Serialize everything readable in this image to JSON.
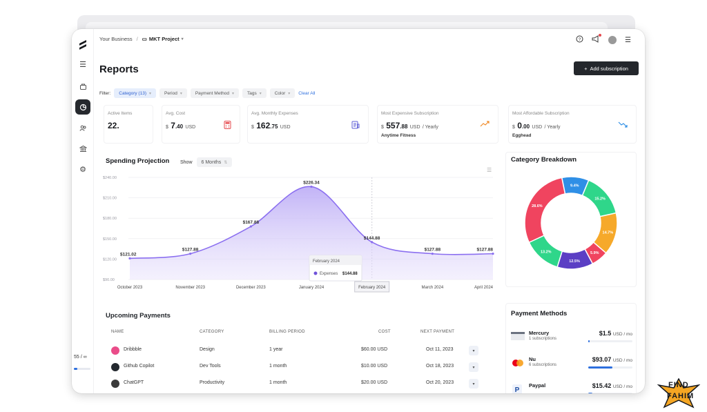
{
  "topbar": {
    "business": "Your Business",
    "separator": "/",
    "project": "MKT Project"
  },
  "sidebar": {
    "usage_text": "55 / ∞",
    "usage_fraction": 0.2
  },
  "page": {
    "title": "Reports",
    "add_button": "Add subscription"
  },
  "filters": {
    "label": "Filter:",
    "chips": [
      {
        "label": "Category (13)",
        "selected": true
      },
      {
        "label": "Period",
        "selected": false
      },
      {
        "label": "Payment Method",
        "selected": false
      },
      {
        "label": "Tags",
        "selected": false
      },
      {
        "label": "Color",
        "selected": false
      }
    ],
    "clear_all": "Clear All"
  },
  "stats": {
    "active_items": {
      "label": "Active Items",
      "value": "22."
    },
    "avg_cost": {
      "label": "Avg. Cost",
      "currency": "$",
      "int": "7",
      "dec": ".40",
      "unit": "USD"
    },
    "avg_monthly": {
      "label": "Avg. Monthly Expenses",
      "currency": "$",
      "int": "162",
      "dec": ".75",
      "unit": "USD"
    },
    "most_expensive": {
      "label": "Most Expensive Subscription",
      "currency": "$",
      "int": "557",
      "dec": ".88",
      "unit": "USD",
      "period": "/ Yearly",
      "name": "Anytime Fitness"
    },
    "most_affordable": {
      "label": "Most Affordable Subscription",
      "currency": "$",
      "int": "0",
      "dec": ".00",
      "unit": "USD",
      "period": "/ Yearly",
      "name": "Egghead"
    }
  },
  "projection": {
    "title": "Spending Projection",
    "show_label": "Show",
    "range": "6 Months",
    "tooltip_title": "February 2024",
    "tooltip_series": "Expenses",
    "tooltip_value": "$144.88"
  },
  "chart_data": {
    "type": "area",
    "x": [
      "October 2023",
      "November 2023",
      "December 2023",
      "January 2024",
      "February 2024",
      "March 2024",
      "April 2024"
    ],
    "y": [
      121.02,
      127.88,
      167.88,
      226.34,
      144.88,
      127.88,
      127.88
    ],
    "data_labels": [
      "$121.02",
      "$127.88",
      "$167.88",
      "$226.34",
      "$144.88",
      "$127.88",
      "$127.88"
    ],
    "y_ticks": [
      "$240.00",
      "$210.00",
      "$180.00",
      "$150.00",
      "$120.00",
      "$90.00"
    ],
    "ylim": [
      90,
      240
    ],
    "highlighted": "February 2024",
    "color": "#8b6ff0"
  },
  "breakdown": {
    "title": "Category Breakdown",
    "type": "pie",
    "slices": [
      {
        "label": "9.4%",
        "value": 9.4,
        "color": "#2f8fe6"
      },
      {
        "label": "15.2%",
        "value": 15.2,
        "color": "#2fd68a"
      },
      {
        "label": "14.7%",
        "value": 14.7,
        "color": "#f6a92a"
      },
      {
        "label": "5.9%",
        "value": 5.9,
        "color": "#f0445f"
      },
      {
        "label": "12.5%",
        "value": 12.5,
        "color": "#5b3fc4"
      },
      {
        "label": "13.2%",
        "value": 13.2,
        "color": "#2fd68a"
      },
      {
        "label": "28.6%",
        "value": 28.6,
        "color": "#f0445f"
      }
    ]
  },
  "payment_methods": {
    "title": "Payment Methods",
    "items": [
      {
        "name": "Mercury",
        "sub": "1 subscriptions",
        "amount": "$1.5",
        "unit": "USD / mo",
        "fraction": 0.03
      },
      {
        "name": "Nu",
        "sub": "6 subscriptions",
        "amount": "$93.07",
        "unit": "USD / mo",
        "fraction": 0.55
      },
      {
        "name": "Paypal",
        "sub": "",
        "amount": "$15.42",
        "unit": "USD / mo",
        "fraction": 0.1
      }
    ]
  },
  "upcoming": {
    "title": "Upcoming Payments",
    "headers": [
      "NAME",
      "CATEGORY",
      "BILLING PERIOD",
      "COST",
      "NEXT PAYMENT"
    ],
    "rows": [
      {
        "name": "Dribbble",
        "category": "Design",
        "period": "1 year",
        "cost": "$60.00 USD",
        "next": "Oct 11, 2023",
        "logo_color": "#ea4c89"
      },
      {
        "name": "Github Copilot",
        "category": "Dev Tools",
        "period": "1 month",
        "cost": "$10.00 USD",
        "next": "Oct 18, 2023",
        "logo_color": "#24292f"
      },
      {
        "name": "ChatGPT",
        "category": "Productivity",
        "period": "1 month",
        "cost": "$20.00 USD",
        "next": "Oct 20, 2023",
        "logo_color": "#3a3a3a"
      }
    ]
  },
  "watermark": {
    "line1": "FIND",
    "line2": "FAHIM"
  }
}
